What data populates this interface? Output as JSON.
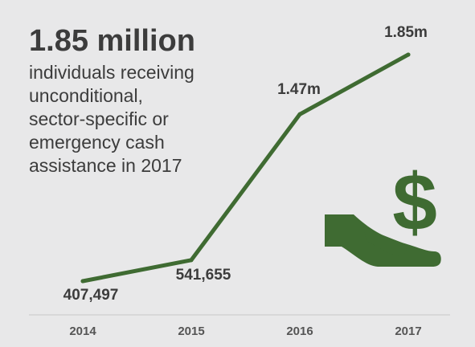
{
  "headline": "1.85 million",
  "subtext": "individuals receiving\nunconditional,\nsector-specific or\nemergency cash\nassistance in 2017",
  "icon": "hand-holding-dollar-icon",
  "colors": {
    "background": "#e8e8e9",
    "line": "#3f6b32",
    "icon": "#3f6b32",
    "text": "#3c3c3c"
  },
  "chart_data": {
    "type": "line",
    "categories": [
      "2014",
      "2015",
      "2016",
      "2017"
    ],
    "series": [
      {
        "values": [
          407497,
          541655,
          1470000,
          1850000
        ]
      }
    ],
    "data_labels": [
      "407,497",
      "541,655",
      "1.47m",
      "1.85m"
    ],
    "title": "",
    "xlabel": "",
    "ylabel": "",
    "grid": false,
    "legend": "none"
  }
}
